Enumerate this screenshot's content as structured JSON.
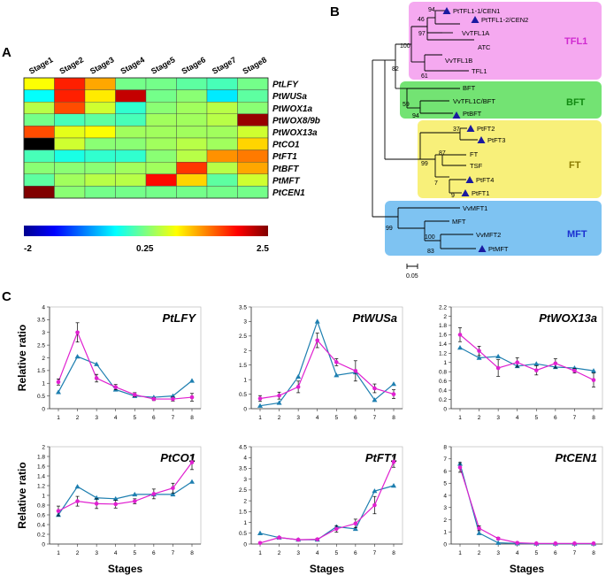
{
  "panels": {
    "a": "A",
    "b": "B",
    "c": "C"
  },
  "heatmap": {
    "stages": [
      "Stage1",
      "Stage2",
      "Stage3",
      "Stage4",
      "Stage5",
      "Stage6",
      "Stage7",
      "Stage8"
    ],
    "genes": [
      "PtLFY",
      "PtWUSa",
      "PtWOX1a",
      "PtWOX8/9b",
      "PtWOX13a",
      "PtCO1",
      "PtFT1",
      "PtBFT",
      "PtMFT",
      "PtCEN1"
    ],
    "values": [
      [
        0.8,
        1.8,
        1.2,
        0.2,
        0.2,
        0.1,
        0.0,
        0.2
      ],
      [
        -0.3,
        1.8,
        0.9,
        2.2,
        0.2,
        0.3,
        -0.4,
        0.1
      ],
      [
        0.5,
        1.6,
        0.6,
        -0.1,
        0.3,
        0.4,
        0.5,
        0.3
      ],
      [
        0.2,
        0.0,
        0.1,
        0.0,
        0.4,
        0.4,
        0.5,
        2.4
      ],
      [
        1.6,
        0.7,
        0.8,
        0.4,
        0.4,
        0.4,
        0.4,
        0.6
      ],
      [
        -2.0,
        0.6,
        0.3,
        0.3,
        0.4,
        0.5,
        0.4,
        1.0
      ],
      [
        0.0,
        -0.2,
        -0.1,
        -0.1,
        0.3,
        0.5,
        1.3,
        1.4
      ],
      [
        0.3,
        0.3,
        0.3,
        0.4,
        0.4,
        1.7,
        0.5,
        1.2
      ],
      [
        0.1,
        0.4,
        0.5,
        0.5,
        1.9,
        1.0,
        0.1,
        0.6
      ],
      [
        2.5,
        0.3,
        0.2,
        0.2,
        0.2,
        0.2,
        0.2,
        0.2
      ]
    ],
    "colorbar": {
      "min_label": "-2",
      "mid_label": "0.25",
      "max_label": "2.5",
      "min": -2,
      "max": 2.5
    }
  },
  "tree": {
    "clades": [
      {
        "name": "TFL1",
        "color": "#f5a9f0",
        "text_color": "#d02ad0"
      },
      {
        "name": "BFT",
        "color": "#73e373",
        "text_color": "#118811"
      },
      {
        "name": "FT",
        "color": "#f8f07a",
        "text_color": "#8a7a00"
      },
      {
        "name": "MFT",
        "color": "#7ec3f2",
        "text_color": "#1a2fd0"
      }
    ],
    "leaves": [
      {
        "name": "PtTFL1-1/CEN1",
        "marked": true
      },
      {
        "name": "PtTFL1-2/CEN2",
        "marked": true
      },
      {
        "name": "VvTFL1A",
        "marked": false
      },
      {
        "name": "ATC",
        "marked": false
      },
      {
        "name": "VvTFL1B",
        "marked": false
      },
      {
        "name": "TFL1",
        "marked": false
      },
      {
        "name": "BFT",
        "marked": false
      },
      {
        "name": "VvTFL1C/BFT",
        "marked": false
      },
      {
        "name": "PtBFT",
        "marked": true
      },
      {
        "name": "PtFT2",
        "marked": true
      },
      {
        "name": "PtFT3",
        "marked": true
      },
      {
        "name": "FT",
        "marked": false
      },
      {
        "name": "TSF",
        "marked": false
      },
      {
        "name": "PtFT4",
        "marked": true
      },
      {
        "name": "PtFT1",
        "marked": true
      },
      {
        "name": "VvMFT1",
        "marked": false
      },
      {
        "name": "MFT",
        "marked": false
      },
      {
        "name": "VvMFT2",
        "marked": false
      },
      {
        "name": "PtMFT",
        "marked": true
      }
    ],
    "bootstrap": [
      "94",
      "46",
      "97",
      "100",
      "61",
      "82",
      "59",
      "94",
      "37",
      "99",
      "87",
      "7",
      "9",
      "99",
      "100",
      "83"
    ],
    "scale_label": "0.05",
    "marker_color": "#1a1aa0"
  },
  "chart_data": [
    {
      "type": "line",
      "title": "PtLFY",
      "ylabel": "Relative ratio",
      "xlabel": "",
      "x": [
        1,
        2,
        3,
        4,
        5,
        6,
        7,
        8
      ],
      "ylim": [
        0,
        4
      ],
      "yticks": [
        0,
        0.5,
        1,
        1.5,
        2,
        2.5,
        3,
        3.5,
        4
      ],
      "series": [
        {
          "color": "#1e7fb0",
          "marker": "triangle",
          "values": [
            0.65,
            2.05,
            1.75,
            0.75,
            0.5,
            0.45,
            0.5,
            1.1
          ]
        },
        {
          "color": "#e020d0",
          "marker": "circle",
          "values": [
            1.05,
            3.0,
            1.2,
            0.85,
            0.55,
            0.38,
            0.38,
            0.45
          ],
          "errors": [
            0.12,
            0.38,
            0.15,
            0.1,
            0.08,
            0.06,
            0.08,
            0.15
          ]
        }
      ]
    },
    {
      "type": "line",
      "title": "PtWUSa",
      "ylabel": "",
      "xlabel": "",
      "x": [
        1,
        2,
        3,
        4,
        5,
        6,
        7,
        8
      ],
      "ylim": [
        0,
        3.5
      ],
      "yticks": [
        0,
        0.5,
        1,
        1.5,
        2,
        2.5,
        3,
        3.5
      ],
      "series": [
        {
          "color": "#1e7fb0",
          "marker": "triangle",
          "values": [
            0.1,
            0.2,
            1.1,
            3.0,
            1.15,
            1.25,
            0.3,
            0.85
          ]
        },
        {
          "color": "#e020d0",
          "marker": "circle",
          "values": [
            0.35,
            0.45,
            0.75,
            2.35,
            1.6,
            1.3,
            0.7,
            0.5
          ],
          "errors": [
            0.1,
            0.12,
            0.2,
            0.25,
            0.12,
            0.35,
            0.15,
            0.15
          ]
        }
      ]
    },
    {
      "type": "line",
      "title": "PtWOX13a",
      "ylabel": "",
      "xlabel": "",
      "x": [
        1,
        2,
        3,
        4,
        5,
        6,
        7,
        8
      ],
      "ylim": [
        0,
        2.2
      ],
      "yticks": [
        0,
        0.2,
        0.4,
        0.6,
        0.8,
        1,
        1.2,
        1.4,
        1.6,
        1.8,
        2,
        2.2
      ],
      "series": [
        {
          "color": "#1e7fb0",
          "marker": "triangle",
          "values": [
            1.32,
            1.1,
            1.13,
            0.92,
            0.97,
            0.9,
            0.88,
            0.82
          ]
        },
        {
          "color": "#e020d0",
          "marker": "circle",
          "values": [
            1.6,
            1.25,
            0.88,
            1.0,
            0.83,
            0.98,
            0.82,
            0.62
          ],
          "errors": [
            0.15,
            0.1,
            0.18,
            0.1,
            0.1,
            0.1,
            0.05,
            0.15
          ]
        }
      ]
    },
    {
      "type": "line",
      "title": "PtCO1",
      "ylabel": "Relative ratio",
      "xlabel": "Stages",
      "x": [
        1,
        2,
        3,
        4,
        5,
        6,
        7,
        8
      ],
      "ylim": [
        0,
        2
      ],
      "yticks": [
        0,
        0.2,
        0.4,
        0.6,
        0.8,
        1,
        1.2,
        1.4,
        1.6,
        1.8,
        2
      ],
      "series": [
        {
          "color": "#1e7fb0",
          "marker": "triangle",
          "values": [
            0.6,
            1.18,
            0.95,
            0.93,
            1.02,
            1.02,
            1.02,
            1.28
          ]
        },
        {
          "color": "#e020d0",
          "marker": "circle",
          "values": [
            0.68,
            0.88,
            0.83,
            0.82,
            0.88,
            1.03,
            1.15,
            1.68
          ],
          "errors": [
            0.1,
            0.1,
            0.1,
            0.08,
            0.05,
            0.1,
            0.1,
            0.15
          ]
        }
      ]
    },
    {
      "type": "line",
      "title": "PtFT1",
      "ylabel": "",
      "xlabel": "Stages",
      "x": [
        1,
        2,
        3,
        4,
        5,
        6,
        7,
        8
      ],
      "ylim": [
        0,
        4.5
      ],
      "yticks": [
        0,
        0.5,
        1,
        1.5,
        2,
        2.5,
        3,
        3.5,
        4,
        4.5
      ],
      "series": [
        {
          "color": "#1e7fb0",
          "marker": "triangle",
          "values": [
            0.5,
            0.3,
            0.2,
            0.2,
            0.8,
            0.7,
            2.45,
            2.7
          ]
        },
        {
          "color": "#e020d0",
          "marker": "circle",
          "values": [
            0.05,
            0.3,
            0.2,
            0.22,
            0.7,
            0.95,
            1.8,
            3.8
          ],
          "errors": [
            0.03,
            0.05,
            0.04,
            0.05,
            0.15,
            0.2,
            0.4,
            0.25
          ]
        }
      ]
    },
    {
      "type": "line",
      "title": "PtCEN1",
      "ylabel": "",
      "xlabel": "Stages",
      "x": [
        1,
        2,
        3,
        4,
        5,
        6,
        7,
        8
      ],
      "ylim": [
        0,
        8
      ],
      "yticks": [
        0,
        1,
        2,
        3,
        4,
        5,
        6,
        7,
        8
      ],
      "series": [
        {
          "color": "#1e7fb0",
          "marker": "triangle",
          "values": [
            6.6,
            0.9,
            0.1,
            0.05,
            0.03,
            0.03,
            0.03,
            0.03
          ]
        },
        {
          "color": "#e020d0",
          "marker": "circle",
          "values": [
            6.3,
            1.3,
            0.45,
            0.1,
            0.05,
            0.05,
            0.05,
            0.05
          ],
          "errors": [
            0.4,
            0.2,
            0.1,
            0.05,
            0.02,
            0.02,
            0.02,
            0.02
          ]
        }
      ]
    }
  ]
}
